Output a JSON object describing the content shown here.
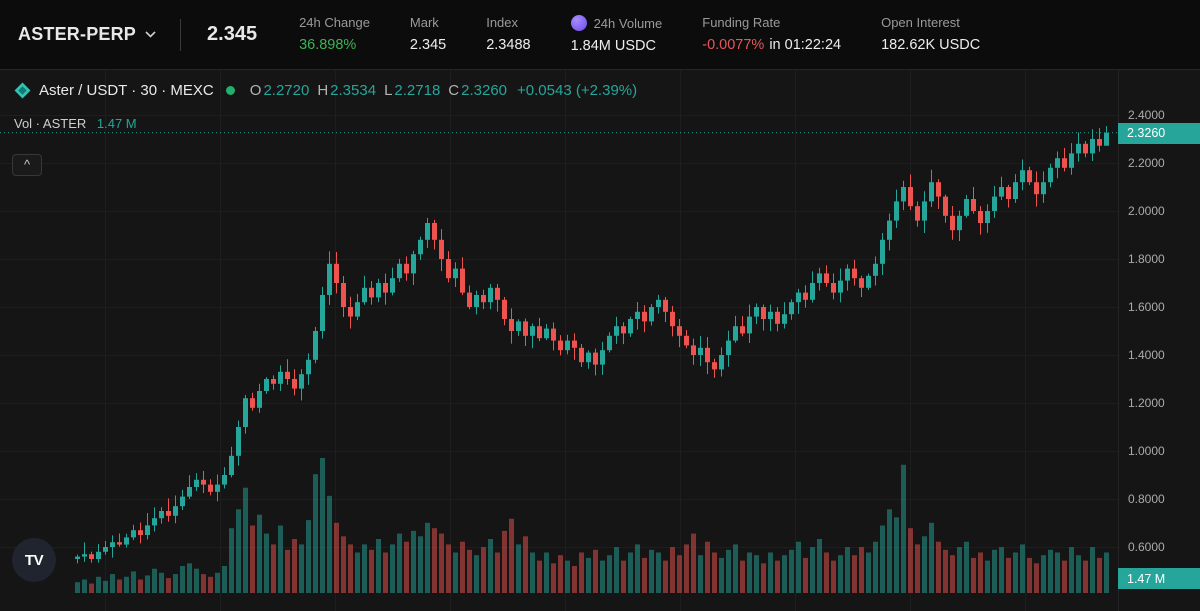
{
  "header": {
    "symbol": "ASTER-PERP",
    "price": "2.345",
    "stats": [
      {
        "label": "24h Change",
        "value": "36.898%"
      },
      {
        "label": "Mark",
        "value": "2.345"
      },
      {
        "label": "Index",
        "value": "2.3488"
      },
      {
        "label": "24h Volume",
        "value": "1.84M USDC"
      },
      {
        "label": "Funding Rate",
        "value": "-0.0077%",
        "suffix": "in 01:22:24"
      },
      {
        "label": "Open Interest",
        "value": "182.62K USDC"
      }
    ]
  },
  "legend": {
    "title": "Aster / USDT · 30 · MEXC",
    "o_key": "O",
    "o": "2.2720",
    "h_key": "H",
    "h": "2.3534",
    "l_key": "L",
    "l": "2.2718",
    "c_key": "C",
    "c": "2.3260",
    "change": "+0.0543 (+2.39%)",
    "vol_label": "Vol · ASTER",
    "vol_value": "1.47 M"
  },
  "icons": {
    "collapse_chevron": "^",
    "tv_logo": "TV",
    "aster_logo": "diamond-gem",
    "token_icon": "purple-token"
  },
  "colors": {
    "up": "#26a69a",
    "down": "#ef5350",
    "gain_green": "#3cb454",
    "loss_red": "#e5565c",
    "tag_bg": "#26a69a",
    "background": "#151515"
  },
  "chart_data": {
    "type": "candlestick_with_volume",
    "title": "Aster / USDT · 30 · MEXC",
    "interval_minutes": 30,
    "exchange": "MEXC",
    "last": {
      "open": 2.272,
      "high": 2.3534,
      "low": 2.2718,
      "close": 2.326,
      "change_text": "+0.0543 (+2.39%)"
    },
    "price_line": 2.326,
    "price_label": "2.3260",
    "volume_label": "1.47 M",
    "y_ticks": [
      2.4,
      2.2,
      2.0,
      1.8,
      1.6,
      1.4,
      1.2,
      1.0,
      0.8,
      0.6
    ],
    "y_tick_labels": [
      "2.4000",
      "2.2000",
      "2.0000",
      "1.8000",
      "1.6000",
      "1.4000",
      "1.2000",
      "1.0000",
      "0.8000",
      "0.6000"
    ],
    "x_grid": [
      105,
      220,
      335,
      450,
      565,
      680,
      795,
      910,
      1025
    ],
    "grid_color": "#1e1e1e",
    "up_color": "#26a69a",
    "down_color": "#ef5350",
    "first_open": 0.55,
    "closes": [
      0.56,
      0.57,
      0.55,
      0.58,
      0.6,
      0.62,
      0.61,
      0.64,
      0.67,
      0.65,
      0.69,
      0.72,
      0.75,
      0.73,
      0.77,
      0.81,
      0.85,
      0.88,
      0.86,
      0.83,
      0.86,
      0.9,
      0.98,
      1.1,
      1.22,
      1.18,
      1.25,
      1.3,
      1.28,
      1.33,
      1.3,
      1.26,
      1.32,
      1.38,
      1.5,
      1.65,
      1.78,
      1.7,
      1.6,
      1.56,
      1.62,
      1.68,
      1.64,
      1.7,
      1.66,
      1.72,
      1.78,
      1.74,
      1.82,
      1.88,
      1.95,
      1.88,
      1.8,
      1.72,
      1.76,
      1.66,
      1.6,
      1.65,
      1.62,
      1.68,
      1.63,
      1.55,
      1.5,
      1.54,
      1.48,
      1.52,
      1.47,
      1.51,
      1.46,
      1.42,
      1.46,
      1.43,
      1.37,
      1.41,
      1.36,
      1.42,
      1.48,
      1.52,
      1.49,
      1.55,
      1.58,
      1.54,
      1.6,
      1.63,
      1.58,
      1.52,
      1.48,
      1.44,
      1.4,
      1.43,
      1.37,
      1.34,
      1.4,
      1.46,
      1.52,
      1.49,
      1.56,
      1.6,
      1.55,
      1.58,
      1.53,
      1.57,
      1.62,
      1.66,
      1.63,
      1.7,
      1.74,
      1.7,
      1.66,
      1.71,
      1.76,
      1.72,
      1.68,
      1.73,
      1.78,
      1.88,
      1.96,
      2.04,
      2.1,
      2.02,
      1.96,
      2.04,
      2.12,
      2.06,
      1.98,
      1.92,
      1.98,
      2.05,
      2.0,
      1.95,
      2.0,
      2.06,
      2.1,
      2.05,
      2.12,
      2.17,
      2.12,
      2.07,
      2.12,
      2.18,
      2.22,
      2.18,
      2.24,
      2.28,
      2.24,
      2.3,
      2.272,
      2.326
    ],
    "volumes": [
      0.08,
      0.1,
      0.07,
      0.12,
      0.09,
      0.14,
      0.1,
      0.12,
      0.16,
      0.1,
      0.13,
      0.18,
      0.15,
      0.11,
      0.14,
      0.2,
      0.22,
      0.18,
      0.14,
      0.12,
      0.15,
      0.2,
      0.48,
      0.62,
      0.78,
      0.5,
      0.58,
      0.44,
      0.36,
      0.5,
      0.32,
      0.4,
      0.36,
      0.54,
      0.88,
      1.0,
      0.72,
      0.52,
      0.42,
      0.36,
      0.3,
      0.36,
      0.32,
      0.4,
      0.3,
      0.36,
      0.44,
      0.38,
      0.46,
      0.42,
      0.52,
      0.48,
      0.44,
      0.36,
      0.3,
      0.38,
      0.32,
      0.28,
      0.34,
      0.4,
      0.3,
      0.46,
      0.55,
      0.36,
      0.42,
      0.3,
      0.24,
      0.3,
      0.22,
      0.28,
      0.24,
      0.2,
      0.3,
      0.26,
      0.32,
      0.24,
      0.28,
      0.34,
      0.24,
      0.3,
      0.36,
      0.26,
      0.32,
      0.3,
      0.24,
      0.34,
      0.28,
      0.36,
      0.44,
      0.28,
      0.38,
      0.3,
      0.26,
      0.32,
      0.36,
      0.24,
      0.3,
      0.28,
      0.22,
      0.3,
      0.24,
      0.28,
      0.32,
      0.38,
      0.26,
      0.34,
      0.4,
      0.3,
      0.24,
      0.28,
      0.34,
      0.28,
      0.34,
      0.3,
      0.38,
      0.5,
      0.62,
      0.56,
      0.95,
      0.48,
      0.36,
      0.42,
      0.52,
      0.38,
      0.32,
      0.28,
      0.34,
      0.38,
      0.26,
      0.3,
      0.24,
      0.32,
      0.34,
      0.26,
      0.3,
      0.36,
      0.26,
      0.22,
      0.28,
      0.32,
      0.3,
      0.24,
      0.34,
      0.28,
      0.24,
      0.34,
      0.26,
      0.3
    ]
  }
}
